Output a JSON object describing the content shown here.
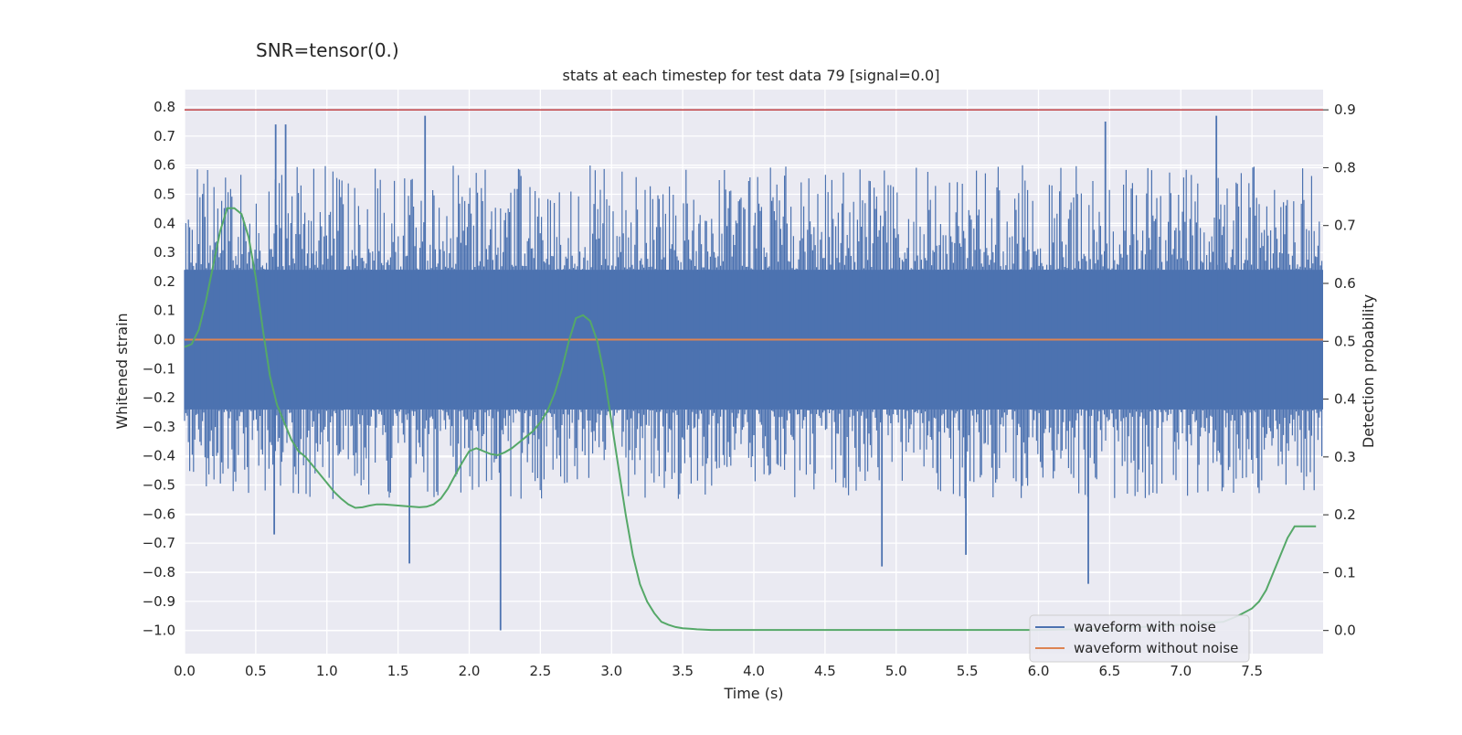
{
  "suptitle": "SNR=tensor(0.)",
  "chart_data": {
    "type": "line",
    "title": "stats at each timestep for test data 79 [signal=0.0]",
    "xlabel": "Time (s)",
    "ylabel": "Whitened strain",
    "ylabel_right": "Detection probability",
    "xlim": [
      0.0,
      8.0
    ],
    "ylim": [
      -1.08,
      0.86
    ],
    "ylim_right": [
      -0.04,
      0.935
    ],
    "xticks": [
      "0.0",
      "0.5",
      "1.0",
      "1.5",
      "2.0",
      "2.5",
      "3.0",
      "3.5",
      "4.0",
      "4.5",
      "5.0",
      "5.5",
      "6.0",
      "6.5",
      "7.0",
      "7.5"
    ],
    "yticks": [
      "0.8",
      "0.7",
      "0.6",
      "0.5",
      "0.4",
      "0.3",
      "0.2",
      "0.1",
      "0.0",
      "−0.1",
      "−0.2",
      "−0.3",
      "−0.4",
      "−0.5",
      "−0.6",
      "−0.7",
      "−0.8",
      "−0.9",
      "−1.0"
    ],
    "yticks_right": [
      "0.9",
      "0.8",
      "0.7",
      "0.6",
      "0.5",
      "0.4",
      "0.3",
      "0.2",
      "0.1",
      "0.0"
    ],
    "grid": true,
    "legend_position": "lower-right",
    "threshold": 0.9,
    "series": [
      {
        "name": "waveform with noise",
        "color": "#4c72b0",
        "axis": "left",
        "core_band": [
          -0.24,
          0.24
        ],
        "typical_peaks": [
          -0.55,
          0.6
        ],
        "notable_peaks": [
          {
            "x": 1.69,
            "y": 0.77
          },
          {
            "x": 0.64,
            "y": 0.74
          },
          {
            "x": 0.71,
            "y": 0.74
          },
          {
            "x": 6.47,
            "y": 0.75
          },
          {
            "x": 7.25,
            "y": 0.77
          },
          {
            "x": 2.22,
            "y": -1.0
          },
          {
            "x": 1.58,
            "y": -0.77
          },
          {
            "x": 6.35,
            "y": -0.84
          },
          {
            "x": 4.9,
            "y": -0.78
          },
          {
            "x": 0.63,
            "y": -0.67
          },
          {
            "x": 5.49,
            "y": -0.74
          }
        ]
      },
      {
        "name": "waveform without noise",
        "color": "#dd8452",
        "axis": "left",
        "x": [
          0.0,
          8.0
        ],
        "y": [
          0.0,
          0.0
        ]
      },
      {
        "color": "#55a868",
        "axis": "right",
        "x": [
          0.0,
          0.05,
          0.1,
          0.15,
          0.2,
          0.25,
          0.3,
          0.35,
          0.4,
          0.45,
          0.5,
          0.55,
          0.6,
          0.65,
          0.7,
          0.75,
          0.8,
          0.85,
          0.9,
          0.95,
          1.0,
          1.05,
          1.1,
          1.15,
          1.2,
          1.25,
          1.3,
          1.35,
          1.4,
          1.45,
          1.5,
          1.55,
          1.6,
          1.65,
          1.7,
          1.75,
          1.8,
          1.85,
          1.9,
          1.95,
          2.0,
          2.05,
          2.1,
          2.15,
          2.2,
          2.25,
          2.3,
          2.35,
          2.4,
          2.45,
          2.5,
          2.55,
          2.6,
          2.65,
          2.7,
          2.75,
          2.8,
          2.85,
          2.9,
          2.95,
          3.0,
          3.05,
          3.1,
          3.15,
          3.2,
          3.25,
          3.3,
          3.35,
          3.4,
          3.45,
          3.5,
          3.55,
          3.6,
          3.65,
          3.7,
          3.75,
          3.8,
          3.85,
          3.9,
          3.95,
          4.0,
          4.1,
          4.2,
          4.4,
          4.6,
          4.8,
          5.0,
          5.5,
          6.0,
          6.5,
          7.0,
          7.3,
          7.4,
          7.5,
          7.55,
          7.6,
          7.65,
          7.7,
          7.75,
          7.8,
          7.85,
          7.9,
          7.95
        ],
        "y": [
          0.49,
          0.495,
          0.52,
          0.57,
          0.63,
          0.69,
          0.73,
          0.73,
          0.72,
          0.68,
          0.61,
          0.52,
          0.44,
          0.39,
          0.36,
          0.33,
          0.31,
          0.3,
          0.285,
          0.27,
          0.255,
          0.24,
          0.228,
          0.218,
          0.212,
          0.213,
          0.216,
          0.218,
          0.218,
          0.217,
          0.216,
          0.215,
          0.214,
          0.213,
          0.214,
          0.218,
          0.228,
          0.245,
          0.268,
          0.29,
          0.31,
          0.315,
          0.31,
          0.305,
          0.303,
          0.308,
          0.315,
          0.325,
          0.335,
          0.345,
          0.36,
          0.38,
          0.41,
          0.45,
          0.5,
          0.54,
          0.545,
          0.535,
          0.5,
          0.44,
          0.36,
          0.28,
          0.2,
          0.13,
          0.08,
          0.05,
          0.03,
          0.015,
          0.01,
          0.006,
          0.004,
          0.003,
          0.002,
          0.0015,
          0.001,
          0.001,
          0.001,
          0.001,
          0.001,
          0.001,
          0.001,
          0.001,
          0.001,
          0.001,
          0.001,
          0.001,
          0.001,
          0.001,
          0.001,
          0.003,
          0.01,
          0.015,
          0.025,
          0.038,
          0.05,
          0.07,
          0.1,
          0.13,
          0.16,
          0.18,
          0.18,
          0.18,
          0.18
        ],
        "raw_x": [
          0.0,
          0.04,
          0.09,
          0.13,
          0.18,
          0.22,
          0.27,
          0.31,
          0.36,
          0.4,
          0.44,
          0.49,
          0.53,
          0.58,
          0.62,
          0.67,
          0.71,
          0.76,
          0.8,
          0.84,
          0.89,
          0.93,
          0.98,
          1.02,
          1.07,
          1.11,
          1.16,
          1.2,
          1.24,
          1.29,
          1.33,
          1.38,
          1.42,
          1.47,
          1.51,
          1.56,
          1.6,
          1.64,
          1.69,
          1.73,
          1.78,
          1.82,
          1.87,
          1.91,
          1.96,
          2.0,
          2.04,
          2.09,
          2.13,
          2.18,
          2.22,
          2.27,
          2.31,
          2.36,
          2.4,
          2.44,
          2.49,
          2.53,
          2.58,
          2.62,
          2.67,
          2.71,
          2.76,
          2.8,
          2.84,
          2.89,
          2.93,
          2.98,
          3.02,
          3.07,
          3.11,
          3.16,
          3.2,
          3.24,
          3.29,
          3.33,
          3.38,
          3.42,
          3.47,
          3.51,
          3.56,
          3.6,
          3.64,
          3.69,
          3.73,
          3.78,
          3.82,
          3.87,
          3.91,
          3.96,
          4.0,
          4.07,
          4.2,
          4.4,
          4.6,
          4.8,
          5.0,
          5.2,
          5.4,
          5.6,
          5.8,
          6.0,
          6.2,
          6.4,
          6.6,
          6.8,
          7.0,
          7.2,
          7.3,
          7.35,
          7.4,
          7.45,
          7.5,
          7.55,
          7.6,
          7.65,
          7.7,
          7.75,
          7.8,
          7.85,
          7.9,
          7.95
        ]
      }
    ]
  }
}
